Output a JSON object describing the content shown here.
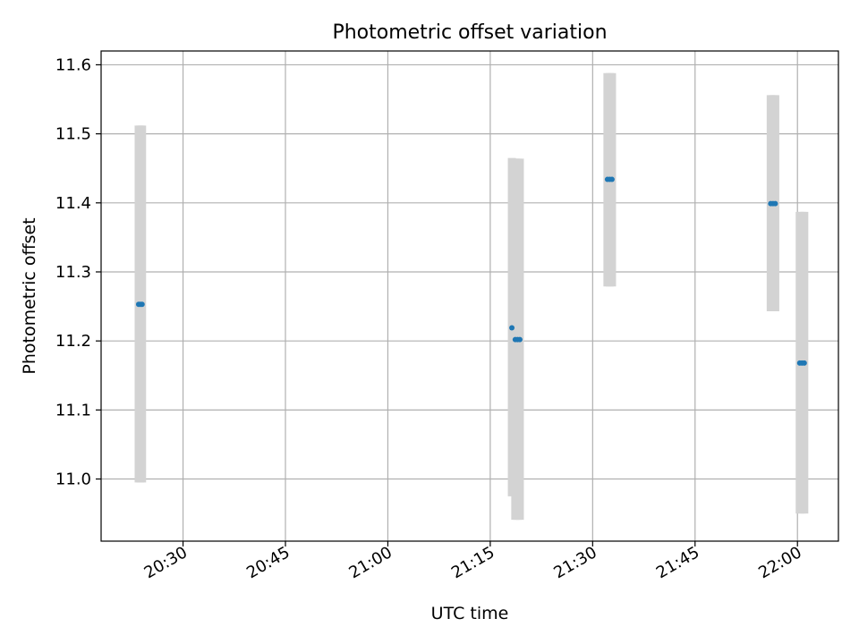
{
  "chart_data": {
    "type": "scatter",
    "title": "Photometric offset variation",
    "xlabel": "UTC time",
    "ylabel": "Photometric offset",
    "x_ticks": [
      "20:30",
      "20:45",
      "21:00",
      "21:15",
      "21:30",
      "21:45",
      "22:00"
    ],
    "y_ticks": [
      "11.0",
      "11.1",
      "11.2",
      "11.3",
      "11.4",
      "11.5",
      "11.6"
    ],
    "xlim": [
      "20:18",
      "22:06"
    ],
    "ylim": [
      10.91,
      11.62
    ],
    "grid": true,
    "error_bar_color": "#d3d3d3",
    "marker_color": "#1f77b4",
    "points": [
      {
        "x": "20:23:30",
        "y": 11.253,
        "lower": 10.995,
        "upper": 11.512
      },
      {
        "x": "20:23:45",
        "y": 11.253,
        "lower": 10.995,
        "upper": 11.512
      },
      {
        "x": "20:24:00",
        "y": 11.253,
        "lower": 10.995,
        "upper": 11.512
      },
      {
        "x": "21:18:10",
        "y": 11.219,
        "lower": 10.975,
        "upper": 11.465
      },
      {
        "x": "21:18:40",
        "y": 11.202,
        "lower": 10.941,
        "upper": 11.464
      },
      {
        "x": "21:19:00",
        "y": 11.202,
        "lower": 10.941,
        "upper": 11.464
      },
      {
        "x": "21:19:20",
        "y": 11.202,
        "lower": 10.941,
        "upper": 11.464
      },
      {
        "x": "21:32:10",
        "y": 11.434,
        "lower": 11.279,
        "upper": 11.588
      },
      {
        "x": "21:32:30",
        "y": 11.434,
        "lower": 11.279,
        "upper": 11.588
      },
      {
        "x": "21:32:50",
        "y": 11.434,
        "lower": 11.279,
        "upper": 11.588
      },
      {
        "x": "21:56:05",
        "y": 11.399,
        "lower": 11.243,
        "upper": 11.556
      },
      {
        "x": "21:56:25",
        "y": 11.399,
        "lower": 11.243,
        "upper": 11.556
      },
      {
        "x": "21:56:45",
        "y": 11.399,
        "lower": 11.243,
        "upper": 11.556
      },
      {
        "x": "22:00:20",
        "y": 11.168,
        "lower": 10.95,
        "upper": 11.387
      },
      {
        "x": "22:00:40",
        "y": 11.168,
        "lower": 10.95,
        "upper": 11.387
      },
      {
        "x": "22:01:00",
        "y": 11.168,
        "lower": 10.95,
        "upper": 11.387
      }
    ]
  }
}
